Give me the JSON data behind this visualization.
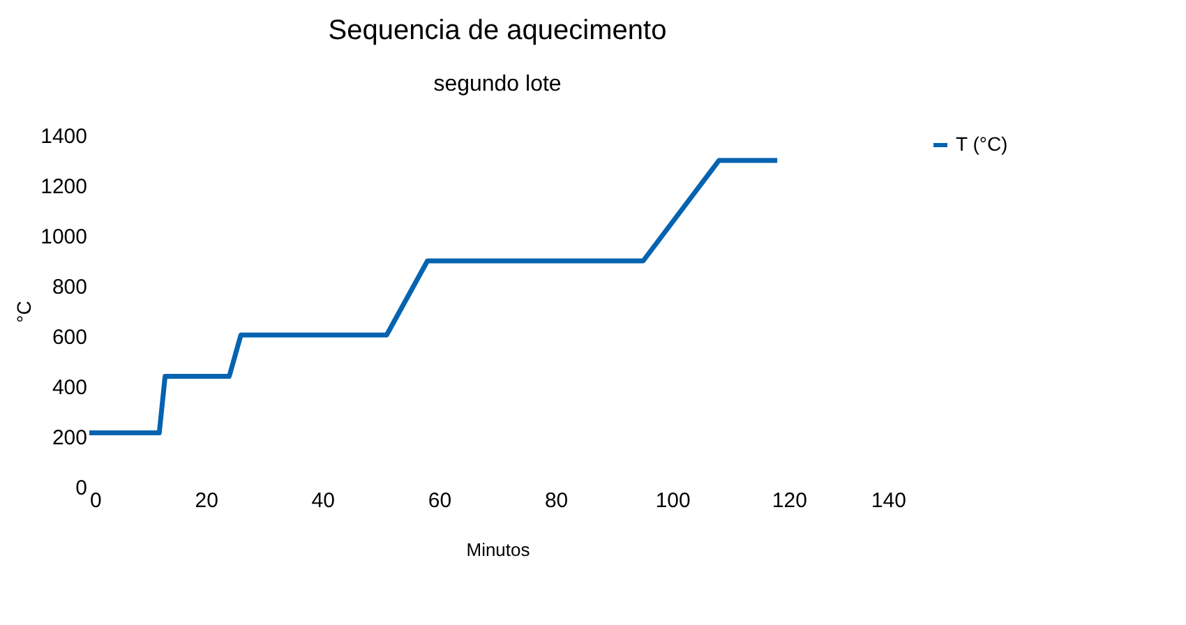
{
  "chart_data": {
    "type": "line",
    "title": "Sequencia de aquecimento",
    "subtitle": "segundo lote",
    "xlabel": "Minutos",
    "ylabel": "°C",
    "x": [
      0,
      12,
      13,
      24,
      26,
      51,
      58,
      95,
      108,
      118
    ],
    "series": [
      {
        "name": "T (°C)",
        "color": "#0563b0",
        "values": [
          215,
          215,
          440,
          440,
          605,
          605,
          900,
          900,
          1300,
          1300
        ]
      }
    ],
    "xlim": [
      0,
      140
    ],
    "xticks": [
      0,
      20,
      40,
      60,
      80,
      100,
      120,
      140
    ],
    "ylim": [
      0,
      1400
    ],
    "yticks": [
      0,
      200,
      400,
      600,
      800,
      1000,
      1200,
      1400
    ],
    "grid": false,
    "legend": "right",
    "marker": "none",
    "line_style": "solid"
  }
}
